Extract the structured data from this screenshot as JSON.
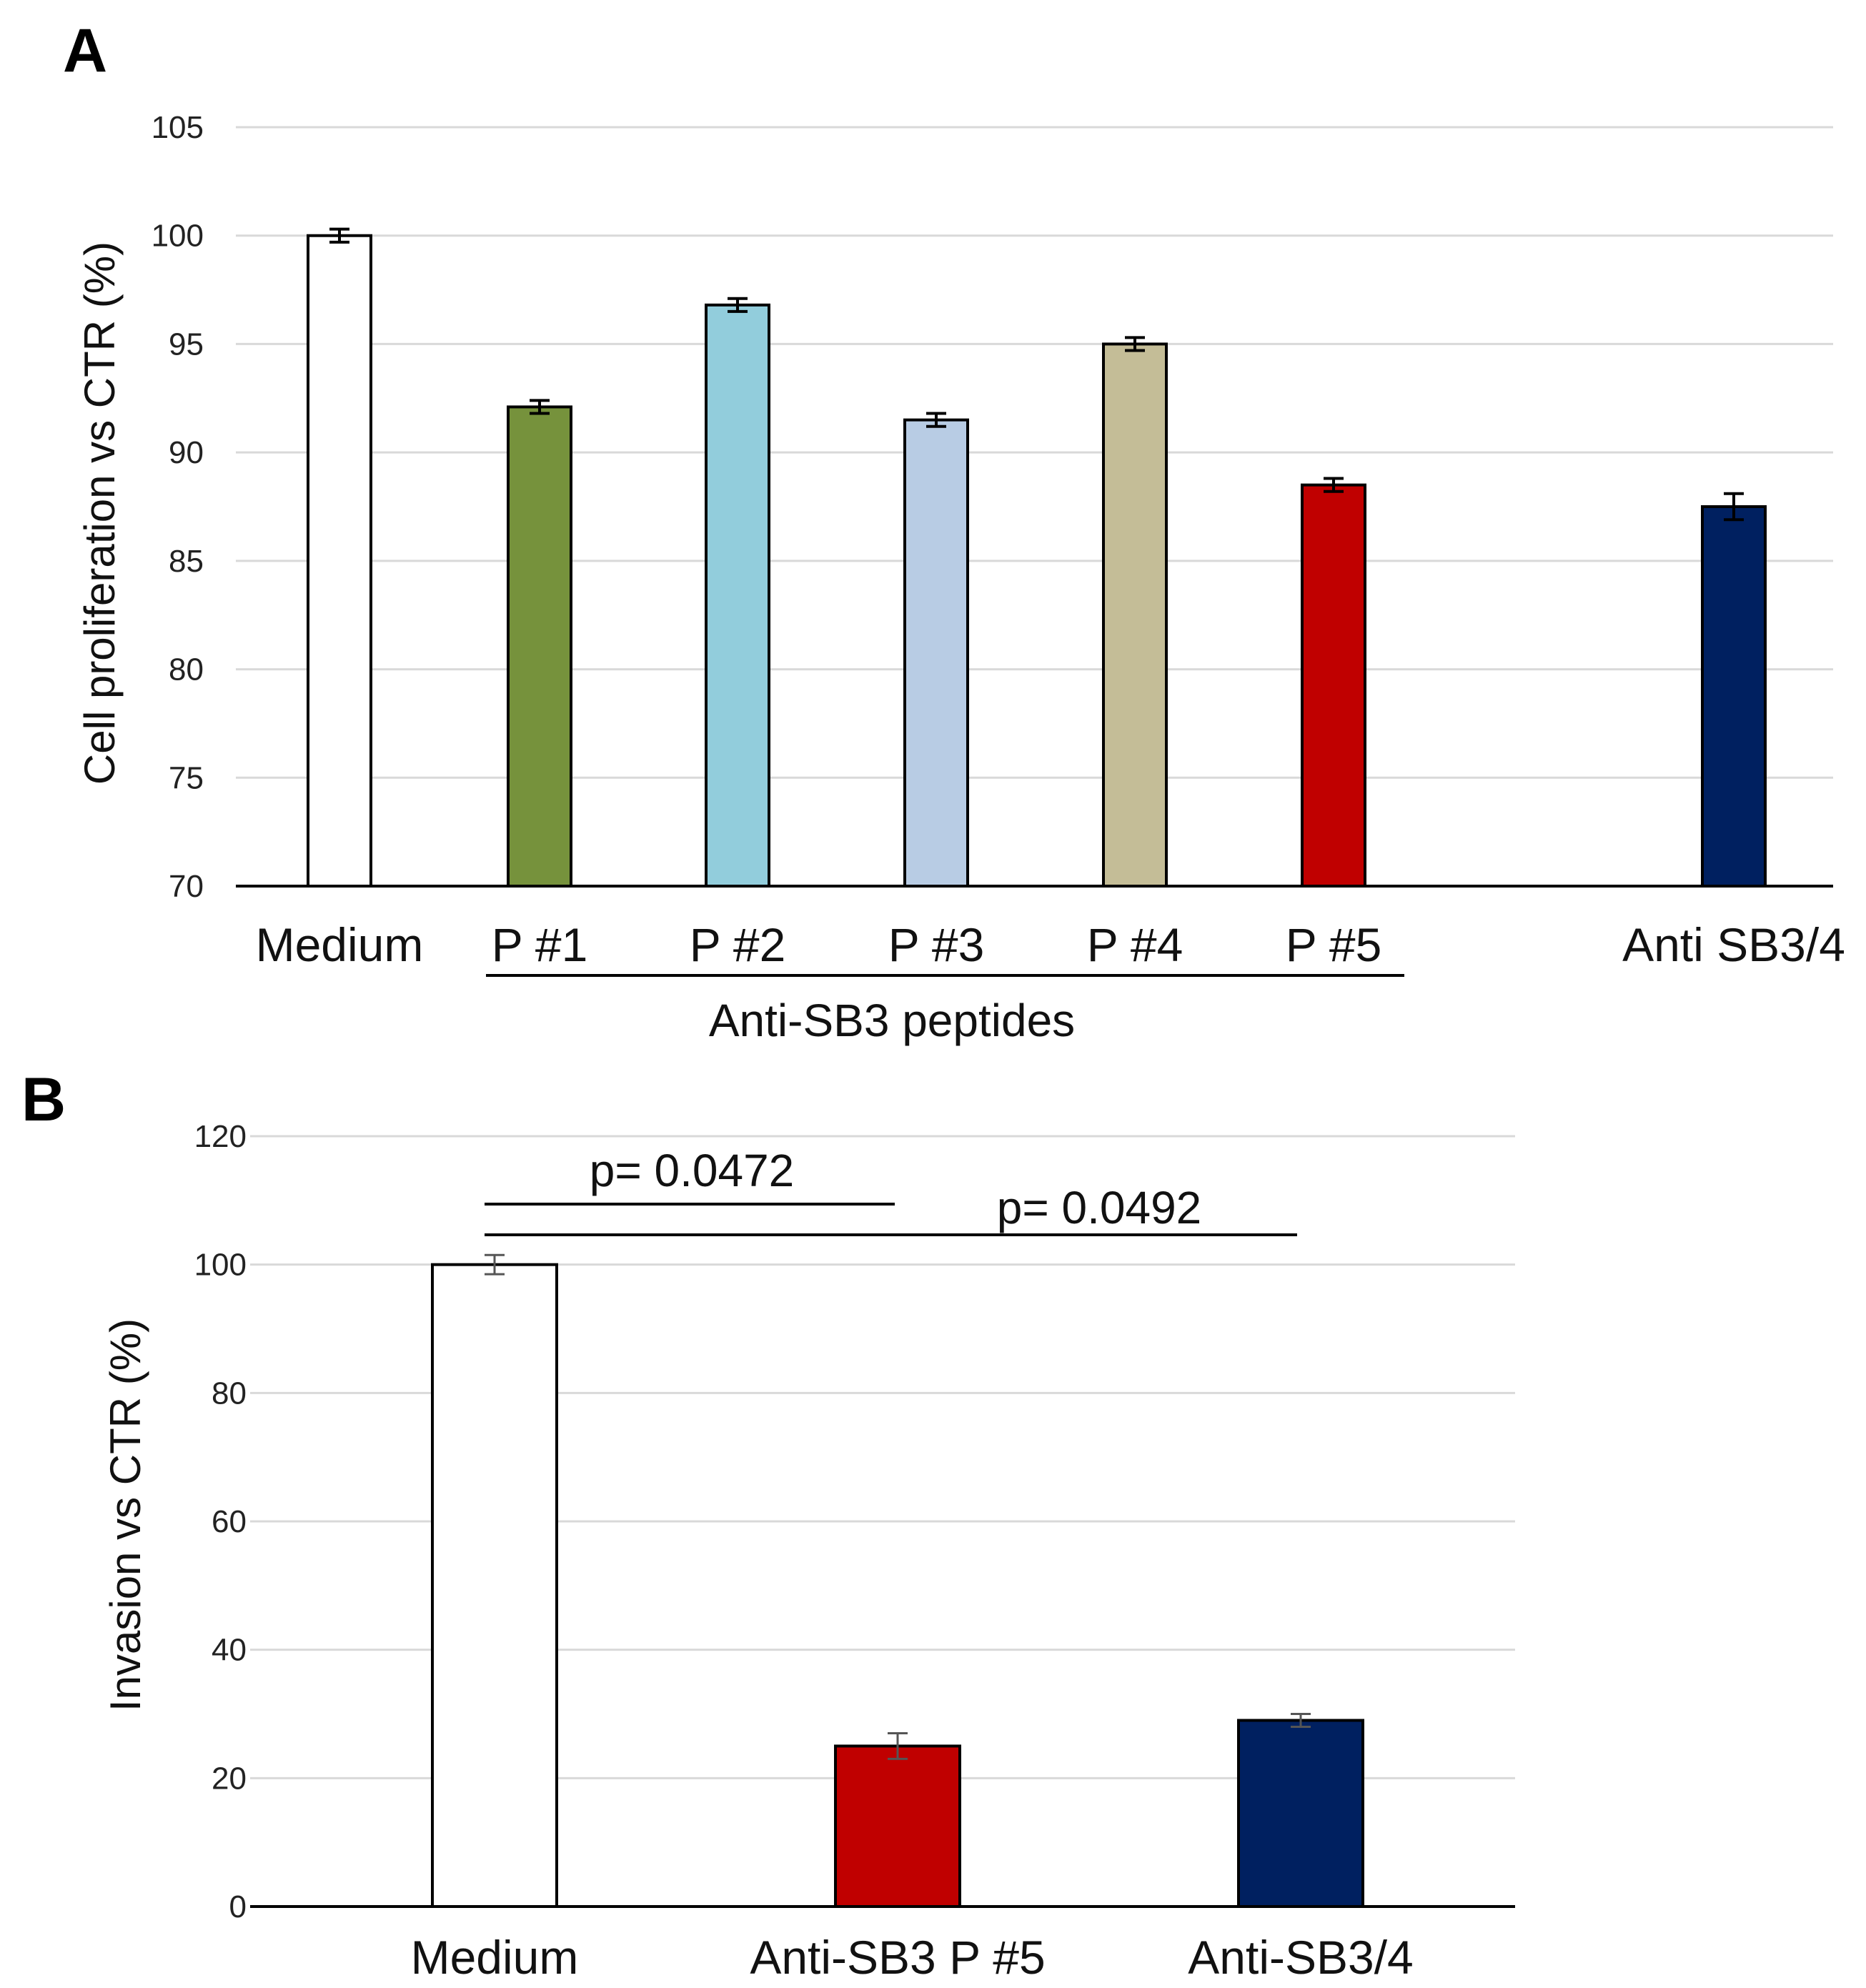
{
  "chart_data": [
    {
      "panel": "A",
      "type": "bar",
      "ylabel": "Cell proliferation vs CTR (%)",
      "xlabel": "",
      "ylim": [
        70,
        105
      ],
      "yticks": [
        70,
        75,
        80,
        85,
        90,
        95,
        100,
        105
      ],
      "grid": true,
      "categories": [
        "Medium",
        "P #1",
        "P #2",
        "P #3",
        "P #4",
        "P #5",
        "Anti SB3/4"
      ],
      "values": [
        100,
        92.1,
        96.8,
        91.5,
        95.0,
        88.5,
        87.5
      ],
      "errors": [
        0.3,
        0.3,
        0.3,
        0.3,
        0.3,
        0.3,
        0.6
      ],
      "colors": [
        "#ffffff",
        "#76923c",
        "#92cddc",
        "#b8cce4",
        "#c4bd97",
        "#c00000",
        "#002060"
      ],
      "group_label": "Anti-SB3 peptides"
    },
    {
      "panel": "B",
      "type": "bar",
      "ylabel": "Invasion vs CTR (%)",
      "xlabel": "",
      "ylim": [
        0,
        120
      ],
      "yticks": [
        0,
        20,
        40,
        60,
        80,
        100,
        120
      ],
      "grid": true,
      "categories": [
        "Medium",
        "Anti-SB3 P #5",
        "Anti-SB3/4"
      ],
      "values": [
        100,
        25,
        29
      ],
      "errors": [
        1.5,
        2.0,
        1.0
      ],
      "colors": [
        "#ffffff",
        "#c00000",
        "#002060"
      ],
      "annotations": [
        "p= 0.0472",
        "p= 0.0492"
      ]
    }
  ]
}
